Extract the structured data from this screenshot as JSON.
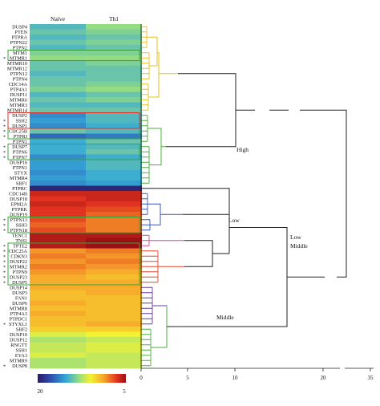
{
  "columns": [
    "Naïve",
    "Th1"
  ],
  "colorbar": {
    "left_label": "20",
    "right_label": "5"
  },
  "cluster_labels": {
    "high": "High",
    "low": "Low",
    "middle": "Middle",
    "low_middle": [
      "Low",
      "Middle"
    ]
  },
  "dendrogram_axis": {
    "ticks": [
      "0",
      "5",
      "10",
      "20",
      "35"
    ],
    "values": [
      0,
      5,
      10,
      20,
      35
    ]
  },
  "colors": {
    "high_cluster": "#e6c21e",
    "green_cluster": "#4caf3c",
    "blue_cluster": "#3a55b8",
    "red_cluster": "#e2462a",
    "purple_cluster": "#6a3d9a",
    "box_green": "#3aa43a",
    "box_red": "#e0302a"
  },
  "chart_data": {
    "type": "heatmap",
    "columns": [
      "Naïve",
      "Th1"
    ],
    "value_range": [
      5,
      20
    ],
    "genes": [
      {
        "name": "DUSP4",
        "star": false,
        "values": [
          14.5,
          13
        ]
      },
      {
        "name": "PTEN",
        "star": false,
        "values": [
          14,
          13.5
        ]
      },
      {
        "name": "PTPRA",
        "star": false,
        "values": [
          14.5,
          14
        ]
      },
      {
        "name": "PTPN22",
        "star": false,
        "values": [
          14,
          13.5
        ]
      },
      {
        "name": "PTPN2",
        "star": false,
        "values": [
          14.5,
          14
        ]
      },
      {
        "name": "MTM1",
        "star": false,
        "values": [
          13.5,
          13.5
        ]
      },
      {
        "name": "MTMR1",
        "star": true,
        "values": [
          13,
          13
        ]
      },
      {
        "name": "MTMR10",
        "star": false,
        "values": [
          14,
          13.5
        ]
      },
      {
        "name": "MTMR12",
        "star": false,
        "values": [
          14,
          14
        ]
      },
      {
        "name": "PTPN12",
        "star": false,
        "values": [
          14.5,
          14
        ]
      },
      {
        "name": "PTPN4",
        "star": false,
        "values": [
          14,
          14
        ]
      },
      {
        "name": "CDC14A",
        "star": false,
        "values": [
          14,
          13.5
        ]
      },
      {
        "name": "PTP4A1",
        "star": false,
        "values": [
          13.5,
          13
        ]
      },
      {
        "name": "DUSP11",
        "star": false,
        "values": [
          14.5,
          14
        ]
      },
      {
        "name": "MTMR6",
        "star": false,
        "values": [
          14,
          13.5
        ]
      },
      {
        "name": "MTMR3",
        "star": false,
        "values": [
          14.5,
          14.5
        ]
      },
      {
        "name": "MTMR14",
        "star": false,
        "values": [
          14,
          14
        ]
      },
      {
        "name": "DUSP2",
        "star": false,
        "values": [
          16,
          14.5
        ]
      },
      {
        "name": "SSH2",
        "star": true,
        "values": [
          15.5,
          14.5
        ]
      },
      {
        "name": "DUSP1",
        "star": true,
        "values": [
          16,
          15
        ]
      },
      {
        "name": "CDC25B",
        "star": true,
        "values": [
          14,
          14.5
        ]
      },
      {
        "name": "PTPRJ",
        "star": true,
        "values": [
          17,
          16.5
        ]
      },
      {
        "name": "PTPN1",
        "star": false,
        "values": [
          15,
          14
        ]
      },
      {
        "name": "DUSP7",
        "star": true,
        "values": [
          15,
          14.5
        ]
      },
      {
        "name": "PTPN6",
        "star": true,
        "values": [
          15,
          14
        ]
      },
      {
        "name": "PTPN7",
        "star": true,
        "values": [
          16,
          15
        ]
      },
      {
        "name": "DUSP16",
        "star": false,
        "values": [
          15.5,
          14.5
        ]
      },
      {
        "name": "PTPN1",
        "star": false,
        "values": [
          15.5,
          14.5
        ]
      },
      {
        "name": "STYX",
        "star": false,
        "values": [
          16,
          15
        ]
      },
      {
        "name": "MTMR4",
        "star": false,
        "values": [
          15.5,
          15
        ]
      },
      {
        "name": "SBF1",
        "star": false,
        "values": [
          16,
          15.5
        ]
      },
      {
        "name": "PTPRC",
        "star": false,
        "values": [
          19.5,
          19.5
        ]
      },
      {
        "name": "CDC14B",
        "star": false,
        "values": [
          6,
          6
        ]
      },
      {
        "name": "DUSP18",
        "star": false,
        "values": [
          6.5,
          6
        ]
      },
      {
        "name": "EPM2A",
        "star": false,
        "values": [
          6,
          6.5
        ]
      },
      {
        "name": "PTPRK",
        "star": false,
        "values": [
          6.5,
          7
        ]
      },
      {
        "name": "DUSP19",
        "star": false,
        "values": [
          6.5,
          7.5
        ]
      },
      {
        "name": "PTPN13",
        "star": true,
        "values": [
          7,
          8
        ]
      },
      {
        "name": "SSH3",
        "star": true,
        "values": [
          7.5,
          8
        ]
      },
      {
        "name": "PTPN18",
        "star": true,
        "values": [
          7,
          8
        ]
      },
      {
        "name": "TENC1",
        "star": false,
        "values": [
          5.5,
          5.5
        ]
      },
      {
        "name": "TNS1",
        "star": false,
        "values": [
          5.5,
          5
        ]
      },
      {
        "name": "TPTE2",
        "star": true,
        "values": [
          5.5,
          5
        ]
      },
      {
        "name": "CDC25A",
        "star": true,
        "values": [
          8.5,
          8
        ]
      },
      {
        "name": "CDKN3",
        "star": true,
        "values": [
          8,
          8.5
        ]
      },
      {
        "name": "DUSP22",
        "star": true,
        "values": [
          8.5,
          8
        ]
      },
      {
        "name": "MTMR2",
        "star": true,
        "values": [
          8,
          8.5
        ]
      },
      {
        "name": "PTPN9",
        "star": true,
        "values": [
          8.5,
          9
        ]
      },
      {
        "name": "DUSP23",
        "star": true,
        "values": [
          9,
          9.5
        ]
      },
      {
        "name": "DUSP5",
        "star": true,
        "values": [
          9,
          9
        ]
      },
      {
        "name": "DUSP14",
        "star": false,
        "values": [
          9,
          9
        ]
      },
      {
        "name": "DUSP3",
        "star": false,
        "values": [
          9.5,
          9
        ]
      },
      {
        "name": "FAN1",
        "star": false,
        "values": [
          9.5,
          9.5
        ]
      },
      {
        "name": "DUSP6",
        "star": false,
        "values": [
          9,
          9.5
        ]
      },
      {
        "name": "MTMR8",
        "star": false,
        "values": [
          9.5,
          9.5
        ]
      },
      {
        "name": "PTP4A3",
        "star": false,
        "values": [
          9,
          9.5
        ]
      },
      {
        "name": "PTPDC1",
        "star": false,
        "values": [
          9.5,
          9.5
        ]
      },
      {
        "name": "STYXL1",
        "star": true,
        "values": [
          9.5,
          9
        ]
      },
      {
        "name": "SBF2",
        "star": false,
        "values": [
          10,
          10
        ]
      },
      {
        "name": "DUSP10",
        "star": false,
        "values": [
          11.5,
          11
        ]
      },
      {
        "name": "DUSP12",
        "star": false,
        "values": [
          12.5,
          12
        ]
      },
      {
        "name": "RNGTT",
        "star": false,
        "values": [
          12,
          11.5
        ]
      },
      {
        "name": "SSH1",
        "star": false,
        "values": [
          12,
          11.5
        ]
      },
      {
        "name": "EYA3",
        "star": false,
        "values": [
          11.5,
          12
        ]
      },
      {
        "name": "MTMR9",
        "star": false,
        "values": [
          12.5,
          12
        ]
      },
      {
        "name": "DUSP8",
        "star": true,
        "values": [
          12.5,
          12
        ]
      }
    ]
  }
}
